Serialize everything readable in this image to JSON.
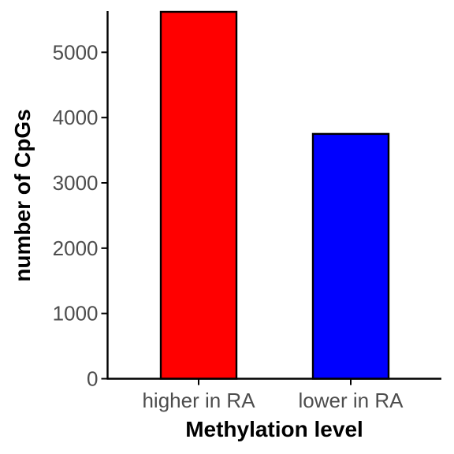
{
  "chart_data": {
    "type": "bar",
    "title": "",
    "xlabel": "Methylation level",
    "ylabel": "number of CpGs",
    "categories": [
      "higher in RA",
      "lower in RA"
    ],
    "values": [
      5620,
      3750
    ],
    "colors": [
      "#ff0000",
      "#0000ff"
    ],
    "bar_outline_color": "#000000",
    "ylim": [
      0,
      5620
    ],
    "yticks": [
      0,
      1000,
      2000,
      3000,
      4000,
      5000
    ],
    "ytick_labels": [
      "0",
      "1000",
      "2000",
      "3000",
      "4000",
      "5000"
    ],
    "grid": false,
    "legend": "none"
  }
}
